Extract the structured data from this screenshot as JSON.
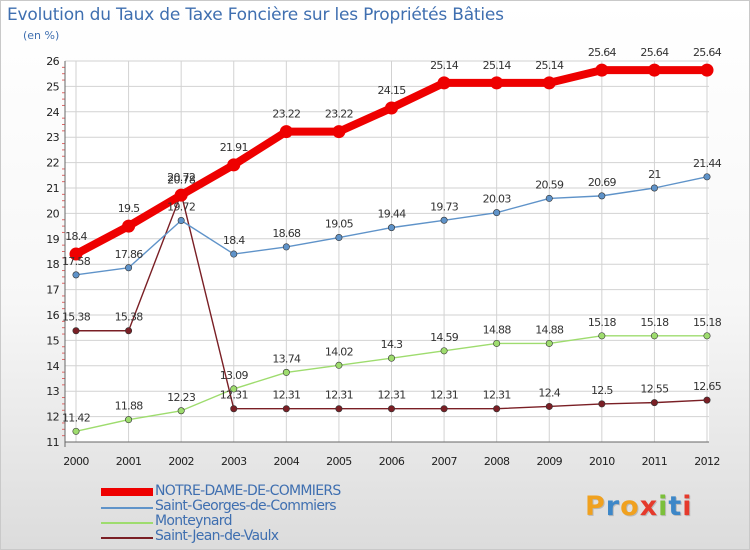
{
  "title": "Evolution du Taux de Taxe Foncière sur les Propriétés Bâties",
  "unit": "(en %)",
  "chart_data": {
    "type": "line",
    "categories": [
      "2000",
      "2001",
      "2002",
      "2003",
      "2004",
      "2005",
      "2006",
      "2007",
      "2008",
      "2009",
      "2010",
      "2011",
      "2012"
    ],
    "ylim": [
      11,
      26
    ],
    "yticks": [
      "11",
      "12",
      "13",
      "14",
      "15",
      "16",
      "17",
      "18",
      "19",
      "20",
      "21",
      "22",
      "23",
      "24",
      "25",
      "26"
    ],
    "series": [
      {
        "name": "NOTRE-DAME-DE-COMMIERS",
        "color": "#ee0000",
        "values": [
          18.4,
          19.5,
          20.72,
          21.91,
          23.22,
          23.22,
          24.15,
          25.14,
          25.14,
          25.14,
          25.64,
          25.64,
          25.64
        ],
        "labels": [
          "18.4",
          "19.5",
          "20.72",
          "21.91",
          "23.22",
          "23.22",
          "24.15",
          "25.14",
          "25.14",
          "25.14",
          "25.64",
          "25.64",
          "25.64"
        ]
      },
      {
        "name": "Saint-Georges-de-Commiers",
        "color": "#5f93c9",
        "values": [
          17.58,
          17.86,
          19.72,
          18.4,
          18.68,
          19.05,
          19.44,
          19.73,
          20.03,
          20.59,
          20.69,
          21,
          21.44
        ],
        "labels": [
          "17.58",
          "17.86",
          "19.72",
          "18.4",
          "18.68",
          "19.05",
          "19.44",
          "19.73",
          "20.03",
          "20.59",
          "20.69",
          "21",
          "21.44"
        ]
      },
      {
        "name": "Monteynard",
        "color": "#9edc6e",
        "values": [
          11.42,
          11.88,
          12.23,
          13.09,
          13.74,
          14.02,
          14.3,
          14.59,
          14.88,
          14.88,
          15.18,
          15.18,
          15.18
        ],
        "labels": [
          "11.42",
          "11.88",
          "12.23",
          "13.09",
          "13.74",
          "14.02",
          "14.3",
          "14.59",
          "14.88",
          "14.88",
          "15.18",
          "15.18",
          "15.18"
        ]
      },
      {
        "name": "Saint-Jean-de-Vaulx",
        "color": "#7a1f25",
        "values": [
          15.38,
          15.38,
          20.78,
          12.31,
          12.31,
          12.31,
          12.31,
          12.31,
          12.31,
          12.4,
          12.5,
          12.55,
          12.65
        ],
        "labels": [
          "15.38",
          "15.38",
          "20.78",
          "12.31",
          "12.31",
          "12.31",
          "12.31",
          "12.31",
          "12.31",
          "12.4",
          "12.5",
          "12.55",
          "12.65"
        ]
      }
    ]
  },
  "logo": {
    "letters": [
      "P",
      "r",
      "o",
      "x",
      "i",
      "t",
      "i"
    ],
    "colors": [
      "#f0a11f",
      "#3d87c8",
      "#f0a11f",
      "#e53a2c",
      "#7bbf3a",
      "#3d87c8",
      "#e53a2c"
    ]
  }
}
